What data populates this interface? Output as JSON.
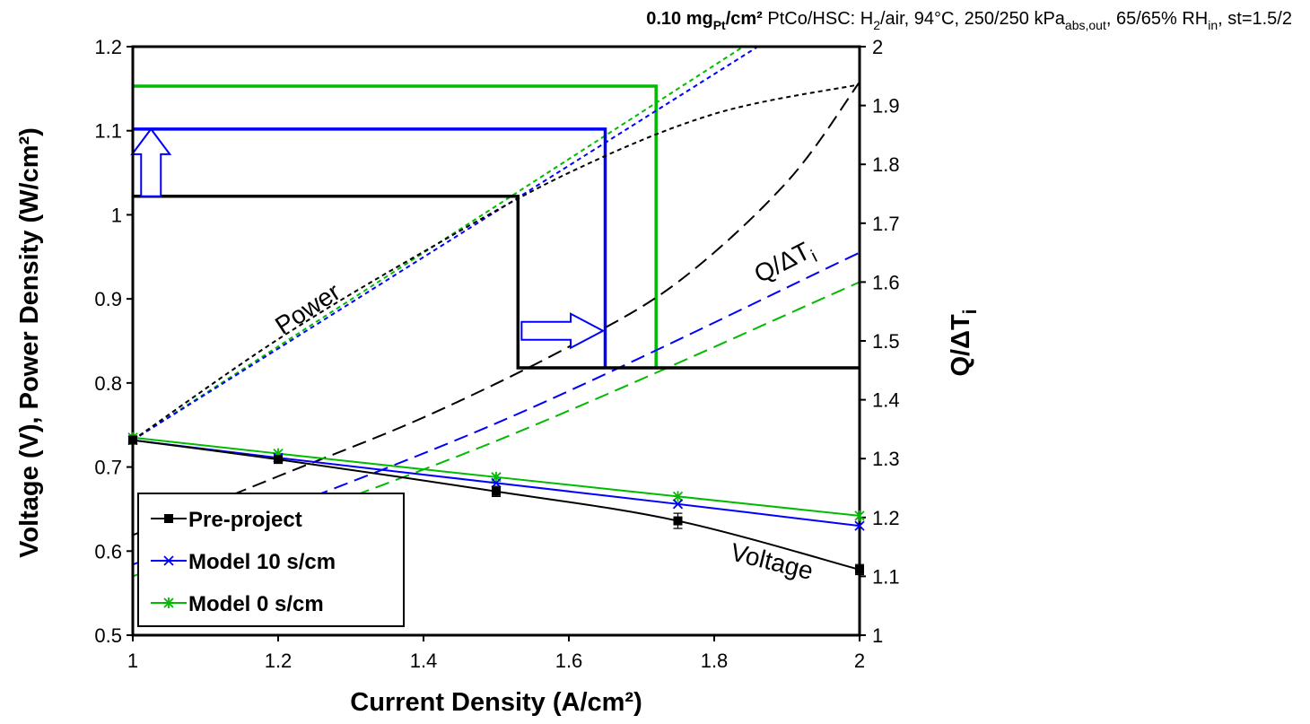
{
  "chart_data": {
    "type": "line",
    "subtitle": {
      "loading": "0.10 mg",
      "loading_sub": "Pt",
      "loading_unit": "/cm²",
      "c1": " PtCo/HSC: H",
      "c1_sub": "2",
      "c2": "/air, 94°C, 250/250 kPa",
      "c2_sub": "abs,out",
      "c3": ", 65/65% RH",
      "c3_sub": "in",
      "c4": ", st=1.5/2"
    },
    "xlabel": "Current Density (A/cm²)",
    "ylabel": "Voltage (V), Power Density (W/cm²)",
    "y2label": "Q/ΔT",
    "y2label_sub": "i",
    "xlim": [
      1,
      2
    ],
    "ylim": [
      0.5,
      1.2
    ],
    "y2lim": [
      1,
      2
    ],
    "xticks": [
      "1",
      "1.2",
      "1.4",
      "1.6",
      "1.8",
      "2"
    ],
    "xtick_values": [
      1,
      1.2,
      1.4,
      1.6,
      1.8,
      2
    ],
    "yticks": [
      "0.5",
      "0.6",
      "0.7",
      "0.8",
      "0.9",
      "1",
      "1.1",
      "1.2"
    ],
    "ytick_values": [
      0.5,
      0.6,
      0.7,
      0.8,
      0.9,
      1.0,
      1.1,
      1.2
    ],
    "y2ticks": [
      "1",
      "1.1",
      "1.2",
      "1.3",
      "1.4",
      "1.5",
      "1.6",
      "1.7",
      "1.8",
      "1.9",
      "2"
    ],
    "y2tick_values": [
      1,
      1.1,
      1.2,
      1.3,
      1.4,
      1.5,
      1.6,
      1.7,
      1.8,
      1.9,
      2
    ],
    "legend": {
      "placement": "bottom-left"
    },
    "annotations": {
      "power": "Power",
      "voltage": "Voltage",
      "q_main": "Q/ΔT",
      "q_sub": "i"
    },
    "series": [
      {
        "name": "Pre-project",
        "color": "#000000",
        "marker": "square",
        "voltage_x": [
          1,
          1.2,
          1.5,
          1.75,
          2
        ],
        "voltage_y": [
          0.732,
          0.709,
          0.671,
          0.636,
          0.578
        ],
        "error": [
          0.004,
          0.004,
          0.006,
          0.009,
          0.006
        ],
        "power_x": [
          1,
          1.2,
          1.4,
          1.6,
          1.8,
          2
        ],
        "power_y": [
          0.732,
          0.852,
          0.956,
          1.05,
          1.12,
          1.155
        ],
        "q_x": [
          1,
          1.2,
          1.4,
          1.6,
          1.75,
          1.9,
          2
        ],
        "q_y": [
          1.17,
          1.27,
          1.37,
          1.49,
          1.6,
          1.77,
          1.94
        ],
        "step_x": [
          1,
          1.53,
          1.53,
          2
        ],
        "step_y": [
          1.022,
          1.022,
          0.818,
          0.818
        ]
      },
      {
        "name": "Model 10 s/cm",
        "color": "#0000ff",
        "marker": "x",
        "voltage_x": [
          1,
          1.2,
          1.5,
          1.75,
          2
        ],
        "voltage_y": [
          0.732,
          0.711,
          0.681,
          0.656,
          0.63
        ],
        "power_x": [
          1,
          1.86
        ],
        "power_y": [
          0.732,
          1.2
        ],
        "q_x": [
          1,
          1.5,
          2
        ],
        "q_y": [
          1.12,
          1.36,
          1.65
        ],
        "step_x": [
          1,
          1.65,
          1.65
        ],
        "step_y": [
          1.102,
          1.102,
          0.818
        ]
      },
      {
        "name": "Model 0 s/cm",
        "color": "#00bb00",
        "marker": "star",
        "voltage_x": [
          1,
          1.2,
          1.5,
          1.75,
          2
        ],
        "voltage_y": [
          0.735,
          0.716,
          0.688,
          0.665,
          0.642
        ],
        "power_x": [
          1,
          1.84
        ],
        "power_y": [
          0.732,
          1.2
        ],
        "q_x": [
          1,
          1.5,
          2
        ],
        "q_y": [
          1.1,
          1.33,
          1.6
        ],
        "step_x": [
          1,
          1.72,
          1.72
        ],
        "step_y": [
          1.153,
          1.153,
          0.818
        ]
      }
    ]
  }
}
